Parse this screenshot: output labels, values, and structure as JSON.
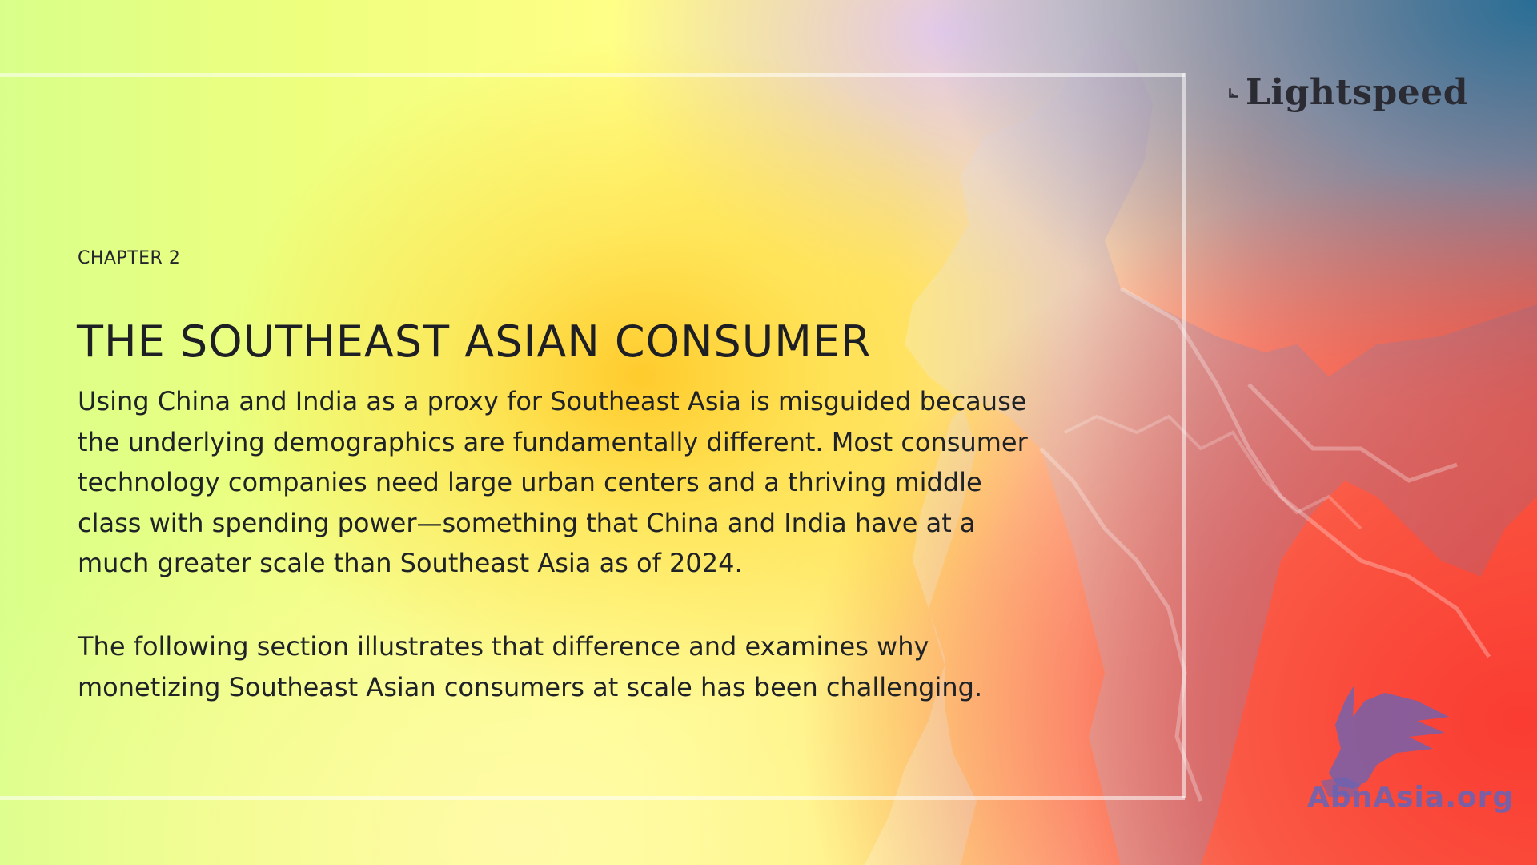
{
  "logo": {
    "text": "Lightspeed"
  },
  "chapter": {
    "label": "CHAPTER 2"
  },
  "title": "THE SOUTHEAST ASIAN CONSUMER",
  "paragraphs": [
    "Using China and India as a proxy for Southeast Asia is misguided because the underlying demographics are fundamentally different. Most consumer technology companies need large urban centers and a thriving middle class with spending power—something that China and India have at a much greater scale than Southeast Asia as of 2024.",
    "The following section illustrates that difference and examines why monetizing Southeast Asian consumers at scale has been challenging."
  ],
  "watermark": {
    "text": "AbnAsia.org"
  },
  "colors": {
    "text": "#1f2226",
    "logo": "#2b2b34",
    "watermark": "#6464b9",
    "map_fill": "#8a7fa0"
  },
  "icons": [
    "lightspeed-logo-icon",
    "griffin-icon"
  ]
}
